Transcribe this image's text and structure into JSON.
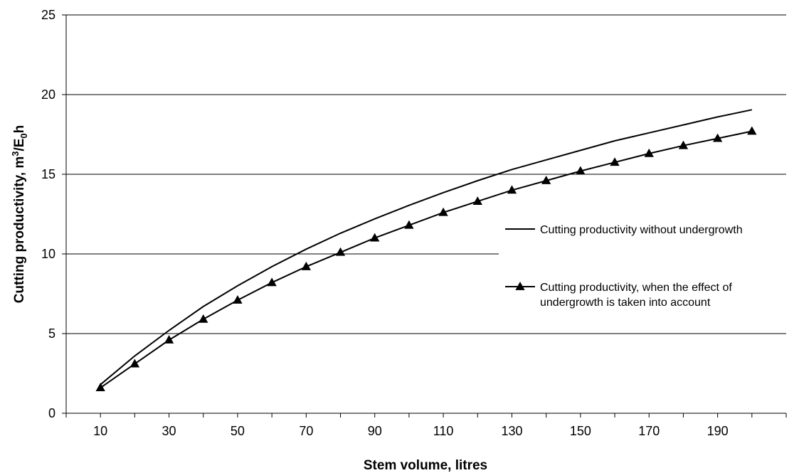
{
  "chart_data": {
    "type": "line",
    "xlabel": "Stem volume, litres",
    "ylabel_parts": [
      "Cutting productivity, m",
      "3",
      "/E",
      "0",
      "h"
    ],
    "ylim": [
      0,
      25
    ],
    "yticks": [
      0,
      5,
      10,
      15,
      20,
      25
    ],
    "xlim": [
      0,
      210
    ],
    "xtick_labels": [
      "10",
      "30",
      "50",
      "70",
      "90",
      "110",
      "130",
      "150",
      "170",
      "190"
    ],
    "grid": "horizontal",
    "legend_position": "right",
    "x": [
      10,
      20,
      30,
      40,
      50,
      60,
      70,
      80,
      90,
      100,
      110,
      120,
      130,
      140,
      150,
      160,
      170,
      180,
      190,
      200
    ],
    "series": [
      {
        "name": "Cutting productivity without undergrowth",
        "marker": "none",
        "values": [
          1.8,
          3.6,
          5.2,
          6.7,
          8.0,
          9.2,
          10.3,
          11.3,
          12.2,
          13.05,
          13.85,
          14.6,
          15.3,
          15.9,
          16.5,
          17.1,
          17.6,
          18.1,
          18.6,
          19.05
        ]
      },
      {
        "name": "Cutting productivity, when the effect of undergrowth is taken into account",
        "marker": "triangle",
        "values": [
          1.6,
          3.1,
          4.6,
          5.9,
          7.1,
          8.2,
          9.2,
          10.1,
          11.0,
          11.8,
          12.6,
          13.3,
          14.0,
          14.6,
          15.2,
          15.75,
          16.3,
          16.8,
          17.25,
          17.7
        ]
      }
    ],
    "colors": {
      "line": "#000000",
      "grid": "#000000"
    }
  }
}
